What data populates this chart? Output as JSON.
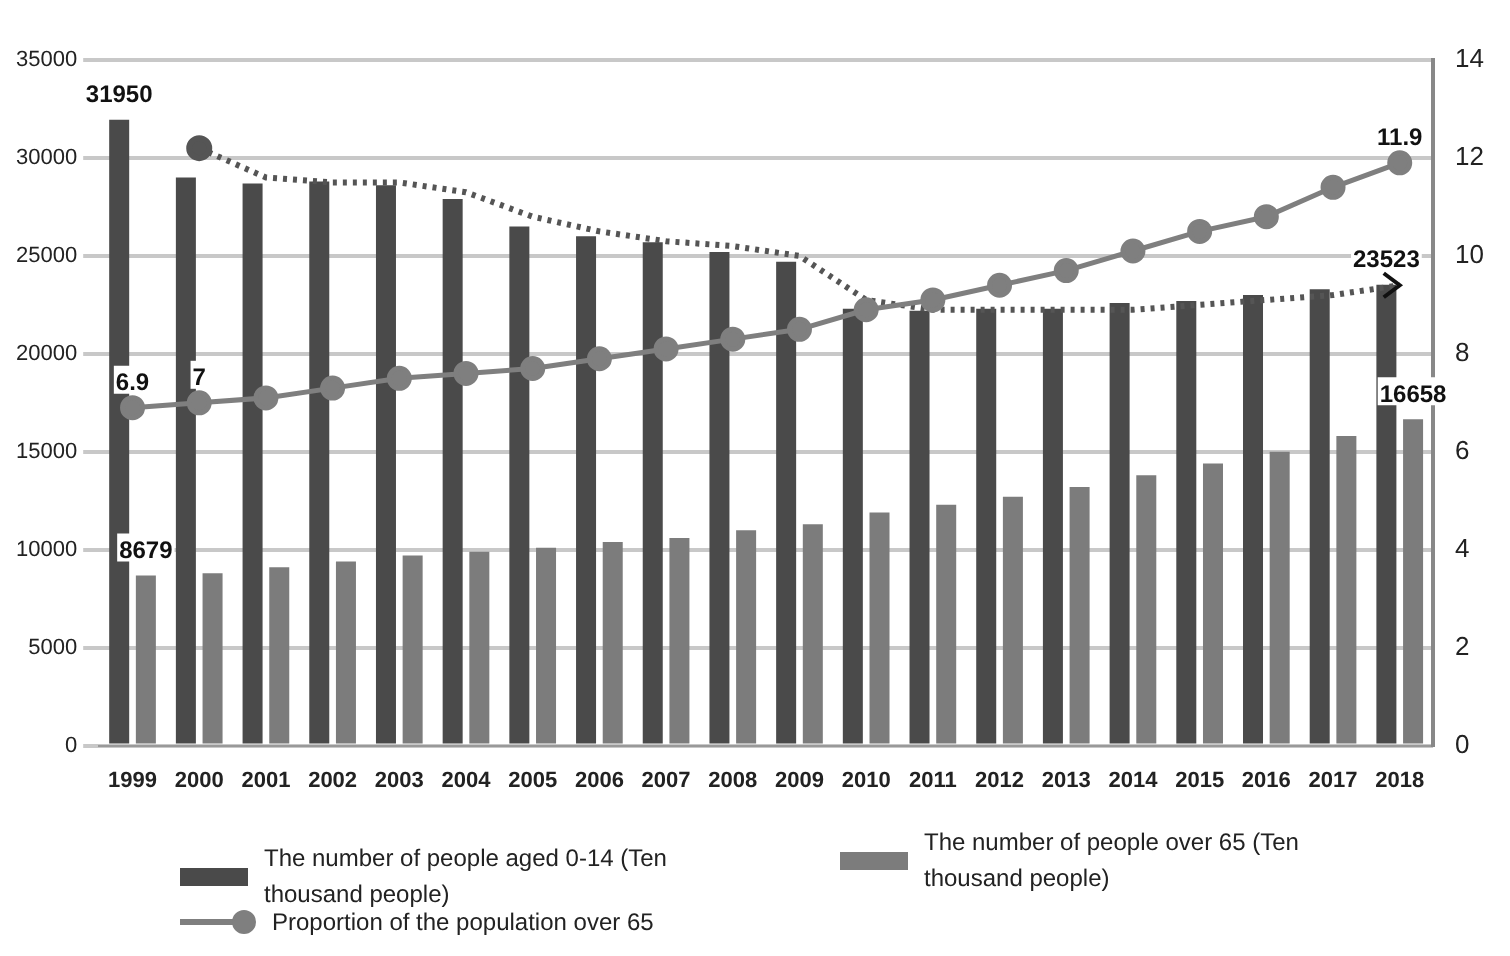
{
  "chart_data": {
    "type": "bar",
    "categories": [
      "1999",
      "2000",
      "2001",
      "2002",
      "2003",
      "2004",
      "2005",
      "2006",
      "2007",
      "2008",
      "2009",
      "2010",
      "2011",
      "2012",
      "2013",
      "2014",
      "2015",
      "2016",
      "2017",
      "2018"
    ],
    "series": [
      {
        "name": "The number of people aged 0-14 (Ten thousand people)",
        "color": "#4a4a4a",
        "values": [
          31950,
          29000,
          28700,
          28800,
          28600,
          27900,
          26500,
          26000,
          25700,
          25200,
          24700,
          22300,
          22200,
          22300,
          22300,
          22600,
          22700,
          23000,
          23300,
          23523
        ],
        "value_labels": [
          "31950",
          null,
          null,
          null,
          null,
          null,
          null,
          null,
          null,
          null,
          null,
          null,
          null,
          null,
          null,
          null,
          null,
          null,
          null,
          "23523"
        ]
      },
      {
        "name": "The number of people over 65 (Ten thousand people)",
        "color": "#7c7c7c",
        "values": [
          8679,
          8800,
          9100,
          9400,
          9700,
          9900,
          10100,
          10400,
          10600,
          11000,
          11300,
          11900,
          12300,
          12700,
          13200,
          13800,
          14400,
          15000,
          15800,
          16658
        ],
        "value_labels": [
          "8679",
          null,
          null,
          null,
          null,
          null,
          null,
          null,
          null,
          null,
          null,
          null,
          null,
          null,
          null,
          null,
          null,
          null,
          null,
          "16658"
        ]
      },
      {
        "name": "Proportion of the population over 65",
        "type": "line",
        "axis": "y2",
        "color": "#7f7f7f",
        "marker": "circle",
        "line_style": "solid",
        "values": [
          6.9,
          7,
          7.1,
          7.3,
          7.5,
          7.6,
          7.7,
          7.9,
          8.1,
          8.3,
          8.5,
          8.9,
          9.1,
          9.4,
          9.7,
          10.1,
          10.5,
          10.8,
          11.4,
          11.9
        ],
        "value_labels": [
          "6.9",
          "7",
          null,
          null,
          null,
          null,
          null,
          null,
          null,
          null,
          null,
          null,
          null,
          null,
          null,
          null,
          null,
          null,
          null,
          "11.9"
        ]
      },
      {
        "type": "line",
        "axis": "y2",
        "color": "#555555",
        "marker": "none",
        "line_style": "dotted",
        "values": [
          null,
          12.2,
          11.6,
          11.5,
          11.5,
          11.3,
          10.8,
          10.5,
          10.3,
          10.2,
          10,
          9.1,
          8.9,
          8.9,
          8.9,
          8.9,
          9,
          9.1,
          9.2,
          9.4
        ]
      }
    ],
    "ylim": [
      0,
      35000
    ],
    "yticks": [
      0,
      5000,
      10000,
      15000,
      20000,
      25000,
      30000,
      35000
    ],
    "y2lim": [
      0,
      14
    ],
    "y2ticks": [
      0,
      2,
      4,
      6,
      8,
      10,
      12,
      14
    ],
    "grid": "y",
    "legend": "bottom"
  }
}
